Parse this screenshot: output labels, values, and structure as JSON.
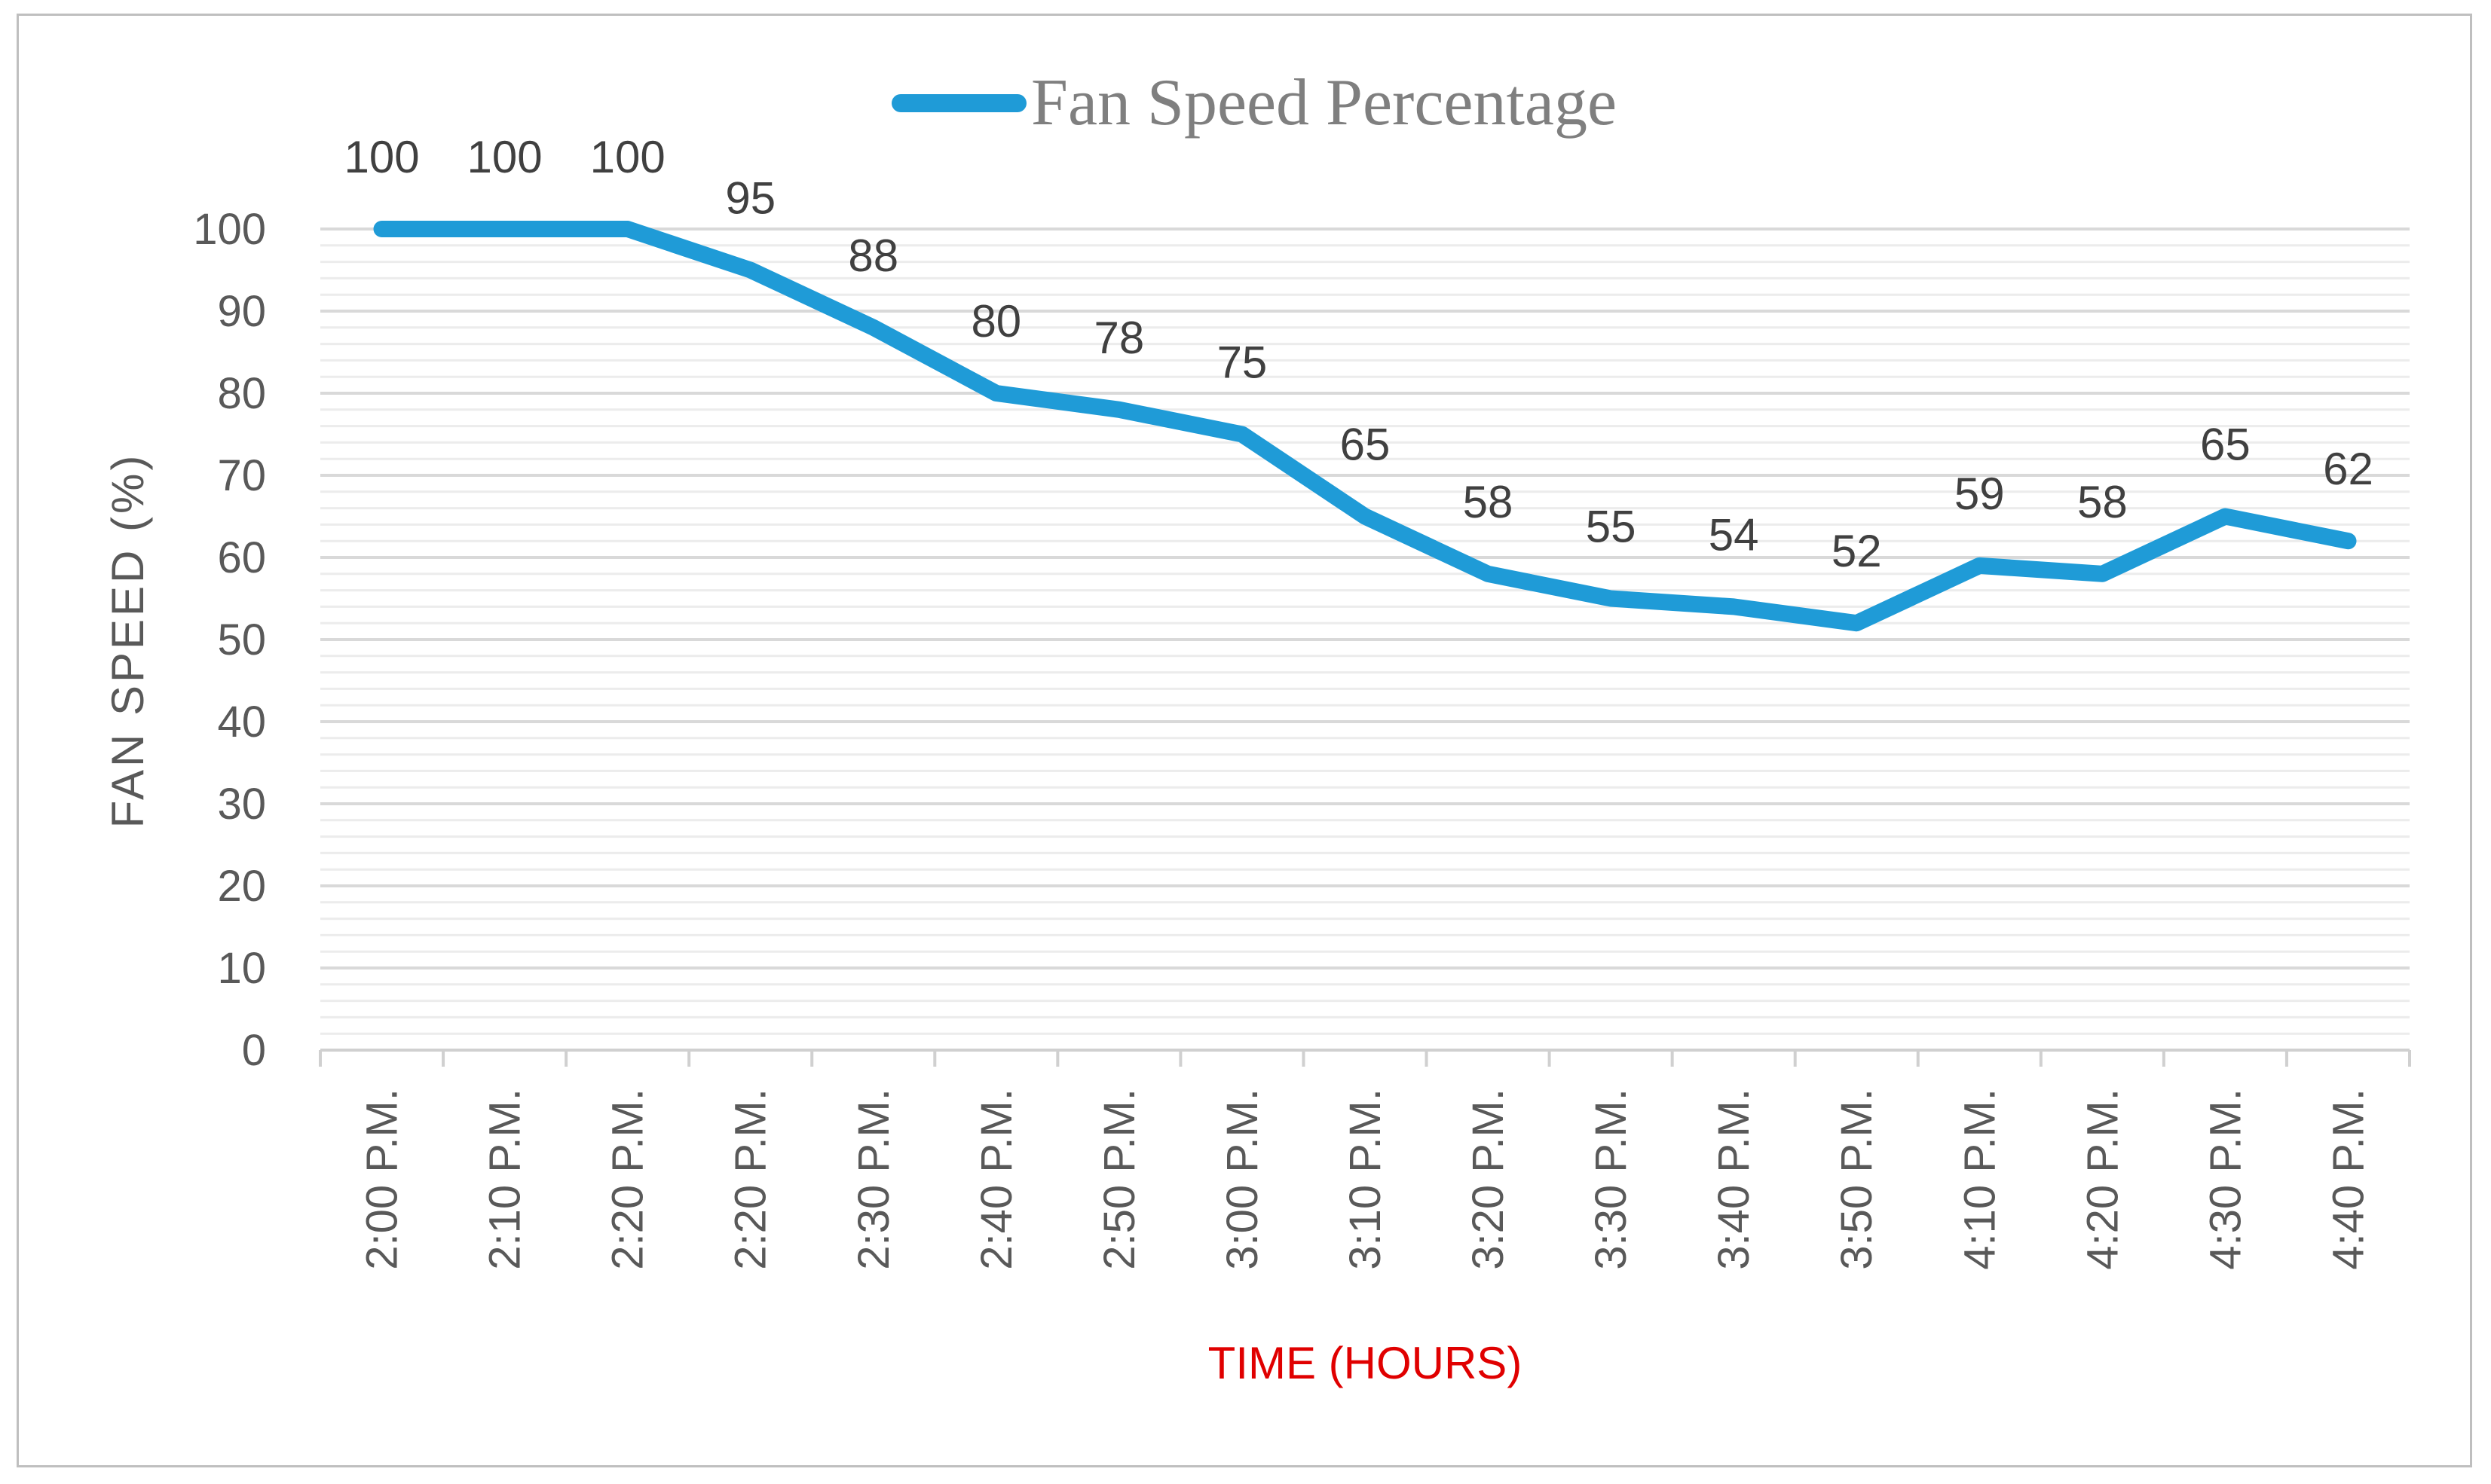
{
  "chart_data": {
    "type": "line",
    "title": "",
    "legend": [
      "Fan Speed Percentage"
    ],
    "legend_position": "top-center",
    "xlabel": "TIME (HOURS)",
    "ylabel": "FAN  SPEED  (%)",
    "ylim": [
      0,
      100
    ],
    "yticks": [
      0,
      10,
      20,
      30,
      40,
      50,
      60,
      70,
      80,
      90,
      100
    ],
    "minor_grid_step": 2,
    "grid": true,
    "categories": [
      "2:00 P.M.",
      "2:10 P.M.",
      "2:20 P.M.",
      "2:20 P.M.",
      "2:30 P.M.",
      "2:40 P.M.",
      "2:50 P.M.",
      "3:00 P.M.",
      "3:10 P.M.",
      "3:20 P.M.",
      "3:30 P.M.",
      "3:40 P.M.",
      "3:50 P.M.",
      "4:10 P.M.",
      "4:20 P.M.",
      "4:30 P.M.",
      "4:40 P.M."
    ],
    "series": [
      {
        "name": "Fan Speed Percentage",
        "values": [
          100,
          100,
          100,
          95,
          88,
          80,
          78,
          75,
          65,
          58,
          55,
          54,
          52,
          59,
          58,
          65,
          62
        ],
        "data_labels": [
          "100",
          "100",
          "100",
          "95",
          "88",
          "80",
          "78",
          "75",
          "65",
          "58",
          "55",
          "54",
          "52",
          "59",
          "58",
          "65",
          "62"
        ]
      }
    ]
  },
  "colors": {
    "line": "#1f9bd7",
    "x_axis_title": "#e00000",
    "grid_major": "#d9d9d9",
    "grid_minor": "#ececec",
    "axis": "#d0d0d0"
  }
}
